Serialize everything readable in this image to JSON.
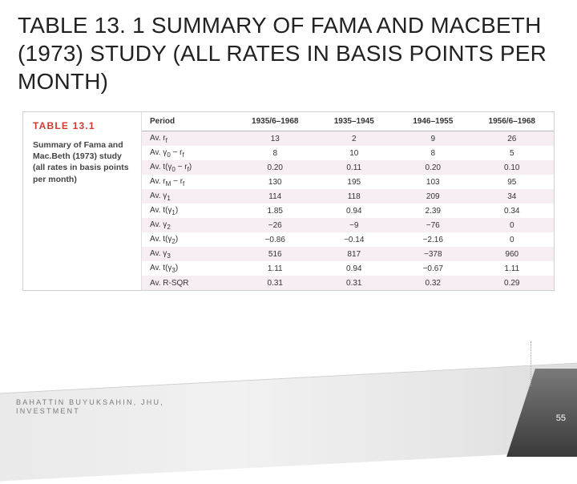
{
  "slide": {
    "title": "TABLE 13. 1 SUMMARY OF FAMA AND MACBETH (1973) STUDY (ALL RATES IN BASIS POINTS PER MONTH)"
  },
  "sidepanel": {
    "label": "TABLE 13.1",
    "caption": "Summary of Fama and Mac.Beth (1973) study (all rates in basis points per month)"
  },
  "table": {
    "header": {
      "period": "Period",
      "c1": "1935/6–1968",
      "c2": "1935–1945",
      "c3": "1946–1955",
      "c4": "1956/6–1968"
    },
    "rows": [
      {
        "label_html": "Av. r<span class='sub'>f</span>",
        "c1": "13",
        "c2": "2",
        "c3": "9",
        "c4": "26",
        "striped": true
      },
      {
        "label_html": "Av. γ<span class='sub'>0</span> − r<span class='sub'>f</span>",
        "c1": "8",
        "c2": "10",
        "c3": "8",
        "c4": "5",
        "striped": false
      },
      {
        "label_html": "Av. t(γ<span class='sub'>0</span> − r<span class='sub'>f</span>)",
        "c1": "0.20",
        "c2": "0.11",
        "c3": "0.20",
        "c4": "0.10",
        "striped": true
      },
      {
        "label_html": "Av. r<span class='sub'>M</span> − r<span class='sub'>f</span>",
        "c1": "130",
        "c2": "195",
        "c3": "103",
        "c4": "95",
        "striped": false
      },
      {
        "label_html": "Av. γ<span class='sub'>1</span>",
        "c1": "114",
        "c2": "118",
        "c3": "209",
        "c4": "34",
        "striped": true
      },
      {
        "label_html": "Av. t(γ<span class='sub'>1</span>)",
        "c1": "1.85",
        "c2": "0.94",
        "c3": "2.39",
        "c4": "0.34",
        "striped": false
      },
      {
        "label_html": "Av. γ<span class='sub'>2</span>",
        "c1": "−26",
        "c2": "−9",
        "c3": "−76",
        "c4": "0",
        "striped": true
      },
      {
        "label_html": "Av. t(γ<span class='sub'>2</span>)",
        "c1": "−0.86",
        "c2": "−0.14",
        "c3": "−2.16",
        "c4": "0",
        "striped": false
      },
      {
        "label_html": "Av. γ<span class='sub'>3</span>",
        "c1": "516",
        "c2": "817",
        "c3": "−378",
        "c4": "960",
        "striped": true
      },
      {
        "label_html": "Av. t(γ<span class='sub'>3</span>)",
        "c1": "1.11",
        "c2": "0.94",
        "c3": "−0.67",
        "c4": "1.11",
        "striped": false
      },
      {
        "label_html": "Av. R-SQR",
        "c1": "0.31",
        "c2": "0.31",
        "c3": "0.32",
        "c4": "0.29",
        "striped": true
      }
    ]
  },
  "footer": {
    "line1": "BAHATTIN BUYUKSAHIN, JHU,",
    "line2": "INVESTMENT",
    "page": "55"
  },
  "style": {
    "title_color": "#222222",
    "accent_color": "#d03b2e",
    "stripe_color": "#f6eef3"
  }
}
